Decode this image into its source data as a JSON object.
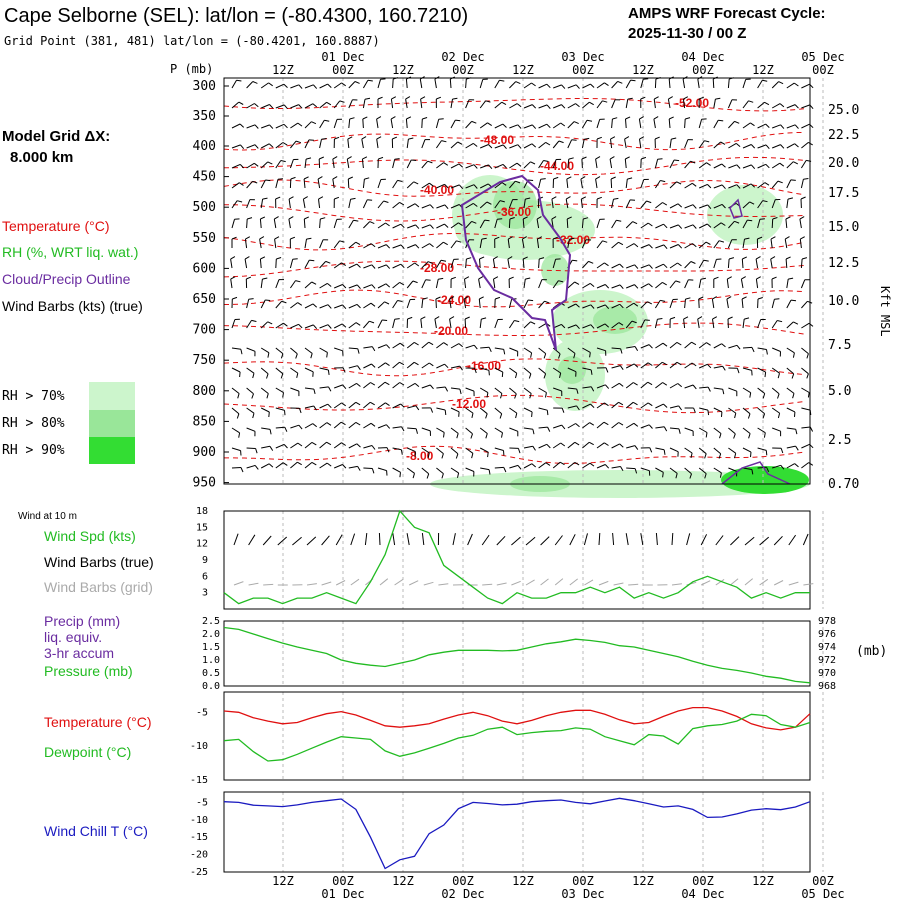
{
  "header": {
    "title": "Cape Selborne (SEL):  lat/lon = (-80.4300, 160.7210)",
    "grid_point": "Grid Point (381, 481) lat/lon = (-80.4201, 160.8887)",
    "cycle_line1": "AMPS WRF Forecast Cycle:",
    "cycle_line2": "2025-11-30 / 00  Z"
  },
  "legend": {
    "model_grid_line1": "Model Grid ΔX:",
    "model_grid_line2": "8.000 km",
    "temperature": "Temperature (°C)",
    "rh": "RH (%, WRT liq. wat.)",
    "cloud": "Cloud/Precip Outline",
    "wind_barbs": "Wind Barbs (kts) (true)",
    "rh70": "RH > 70%",
    "rh80": "RH > 80%",
    "rh90": "RH > 90%",
    "wind_at_10m": "Wind at 10 m",
    "wind_spd": "Wind Spd (kts)",
    "wind_barbs_true": "Wind Barbs (true)",
    "wind_barbs_grid": "Wind Barbs (grid)",
    "precip_line1": "Precip (mm)",
    "precip_line2": "liq. equiv.",
    "precip_line3": "3-hr accum",
    "pressure": "Pressure (mb)",
    "pressure_unit": "(mb)",
    "temp2": "Temperature (°C)",
    "dewpoint": "Dewpoint (°C)",
    "windchill": "Wind Chill T (°C)"
  },
  "colors": {
    "temperature": "#e01010",
    "rh": "#22bb22",
    "cloud": "#6a2ca0",
    "windchill": "#1a1ac0",
    "rh70": "#ccf5cc",
    "rh80": "#99e699",
    "rh90": "#33dd33",
    "grid_barbs": "#aaaaaa"
  },
  "chart_data": [
    {
      "type": "contour",
      "name": "Cross-section",
      "ylabel": "P (mb)",
      "ylabel_right": "Kft MSL",
      "x_ticks_top": [
        "12Z",
        "00Z",
        "12Z",
        "00Z",
        "12Z",
        "00Z",
        "12Z",
        "00Z",
        "12Z",
        "00Z"
      ],
      "x_dates_top": [
        "01 Dec",
        "02 Dec",
        "03 Dec",
        "04 Dec",
        "05 Dec"
      ],
      "pressure_ticks": [
        300,
        350,
        400,
        450,
        500,
        550,
        600,
        650,
        700,
        750,
        800,
        850,
        900,
        950
      ],
      "height_ticks": [
        "25.0",
        "22.5",
        "20.0",
        "17.5",
        "15.0",
        "12.5",
        "10.0",
        "7.5",
        "5.0",
        "2.5",
        "0.70"
      ],
      "temperature_contour_labels": [
        "-52.00",
        "-48.00",
        "-44.00",
        "-40.00",
        "-36.00",
        "-32.00",
        "-28.00",
        "-24.00",
        "-20.00",
        "-16.00",
        "-12.00",
        "-8.00"
      ]
    },
    {
      "type": "line",
      "name": "Wind speed",
      "yticks": [
        3,
        6,
        9,
        12,
        15,
        18
      ],
      "ylim": [
        0,
        18
      ],
      "x": [
        0,
        1,
        2,
        3,
        4,
        5,
        6,
        7,
        8,
        9,
        10,
        11,
        12,
        13,
        14,
        15,
        16,
        17,
        18,
        19,
        20,
        21,
        22,
        23,
        24,
        25,
        26,
        27,
        28,
        29,
        30,
        31,
        32,
        33,
        34,
        35,
        36,
        37,
        38,
        39,
        40
      ],
      "wind_speed_kts": [
        3,
        1,
        2,
        2,
        1,
        2,
        2,
        3,
        2,
        1,
        5,
        10,
        18,
        15,
        14,
        8,
        6,
        4,
        2,
        1,
        3,
        2,
        2,
        3,
        3,
        4,
        3,
        4,
        2,
        3,
        2,
        3,
        5,
        6,
        5,
        4,
        2,
        3,
        2,
        3,
        3
      ]
    },
    {
      "type": "line",
      "name": "Pressure and precip",
      "yticks_left": [
        "0.0",
        "0.5",
        "1.0",
        "1.5",
        "2.0",
        "2.5"
      ],
      "yticks_right": [
        968,
        970,
        972,
        974,
        976,
        978
      ],
      "ylim_left": [
        0,
        2.5
      ],
      "ylim_right": [
        968,
        978
      ],
      "x": [
        0,
        1,
        2,
        3,
        4,
        5,
        6,
        7,
        8,
        9,
        10,
        11,
        12,
        13,
        14,
        15,
        16,
        17,
        18,
        19,
        20,
        21,
        22,
        23,
        24,
        25,
        26,
        27,
        28,
        29,
        30,
        31,
        32,
        33,
        34,
        35,
        36,
        37,
        38,
        39,
        40
      ],
      "pressure_mb": [
        977.0,
        976.7,
        976.0,
        975.3,
        974.6,
        974.0,
        973.5,
        973.0,
        972.0,
        971.5,
        971.2,
        971.0,
        971.5,
        972.0,
        972.8,
        973.2,
        973.5,
        973.5,
        973.5,
        973.4,
        973.5,
        974.0,
        974.5,
        974.8,
        975.2,
        975.0,
        974.7,
        974.2,
        974.0,
        973.5,
        973.0,
        972.5,
        971.8,
        971.2,
        970.7,
        970.4,
        970.0,
        969.5,
        969.2,
        968.7,
        968.5
      ],
      "precip_mm": []
    },
    {
      "type": "line",
      "name": "Temperature and dewpoint",
      "yticks": [
        -15,
        -10,
        -5
      ],
      "ylim": [
        -15,
        -2
      ],
      "x": [
        0,
        1,
        2,
        3,
        4,
        5,
        6,
        7,
        8,
        9,
        10,
        11,
        12,
        13,
        14,
        15,
        16,
        17,
        18,
        19,
        20,
        21,
        22,
        23,
        24,
        25,
        26,
        27,
        28,
        29,
        30,
        31,
        32,
        33,
        34,
        35,
        36,
        37,
        38,
        39,
        40
      ],
      "temperature_c": [
        -4.8,
        -5.0,
        -5.8,
        -6.3,
        -6.7,
        -6.5,
        -5.8,
        -5.2,
        -4.9,
        -5.4,
        -6.2,
        -7.0,
        -7.2,
        -7.0,
        -6.7,
        -6.0,
        -5.4,
        -5.0,
        -5.5,
        -6.3,
        -6.7,
        -6.2,
        -5.5,
        -5.0,
        -4.7,
        -4.7,
        -5.3,
        -6.1,
        -6.7,
        -6.5,
        -5.6,
        -4.8,
        -4.3,
        -4.3,
        -4.8,
        -5.6,
        -6.7,
        -7.3,
        -7.6,
        -7.2,
        -5.2
      ],
      "dewpoint_c": [
        -9.2,
        -9.0,
        -10.8,
        -12.2,
        -12.0,
        -11.2,
        -10.3,
        -9.4,
        -8.6,
        -8.8,
        -9.0,
        -10.7,
        -11.5,
        -11.0,
        -10.3,
        -9.6,
        -8.8,
        -8.4,
        -7.5,
        -7.2,
        -8.3,
        -8.0,
        -7.8,
        -7.7,
        -7.3,
        -7.5,
        -8.6,
        -9.2,
        -9.8,
        -8.3,
        -8.5,
        -9.7,
        -7.4,
        -7.0,
        -6.8,
        -6.3,
        -5.3,
        -5.5,
        -6.8,
        -7.2,
        -6.5
      ]
    },
    {
      "type": "line",
      "name": "Wind chill",
      "yticks": [
        -25,
        -20,
        -15,
        -10,
        -5
      ],
      "ylim": [
        -25,
        -2
      ],
      "x": [
        0,
        1,
        2,
        3,
        4,
        5,
        6,
        7,
        8,
        9,
        10,
        11,
        12,
        13,
        14,
        15,
        16,
        17,
        18,
        19,
        20,
        21,
        22,
        23,
        24,
        25,
        26,
        27,
        28,
        29,
        30,
        31,
        32,
        33,
        34,
        35,
        36,
        37,
        38,
        39,
        40
      ],
      "wind_chill_c": [
        -4.8,
        -5.0,
        -5.8,
        -6.0,
        -6.2,
        -5.7,
        -5.0,
        -4.5,
        -4.0,
        -7.0,
        -15.0,
        -24.0,
        -21.5,
        -20.5,
        -14.0,
        -11.5,
        -6.8,
        -5.0,
        -5.3,
        -5.7,
        -5.5,
        -4.8,
        -4.5,
        -4.3,
        -5.0,
        -5.4,
        -4.6,
        -3.8,
        -4.5,
        -5.4,
        -6.3,
        -6.0,
        -7.0,
        -9.3,
        -9.2,
        -8.3,
        -7.2,
        -6.8,
        -7.1,
        -6.3,
        -4.8
      ]
    },
    {
      "type": "axis",
      "name": "Bottom time axis",
      "x_ticks_bottom": [
        "12Z",
        "00Z",
        "12Z",
        "00Z",
        "12Z",
        "00Z",
        "12Z",
        "00Z",
        "12Z",
        "00Z"
      ],
      "x_dates_bottom": [
        "01 Dec",
        "02 Dec",
        "03 Dec",
        "04 Dec",
        "05 Dec"
      ]
    }
  ]
}
